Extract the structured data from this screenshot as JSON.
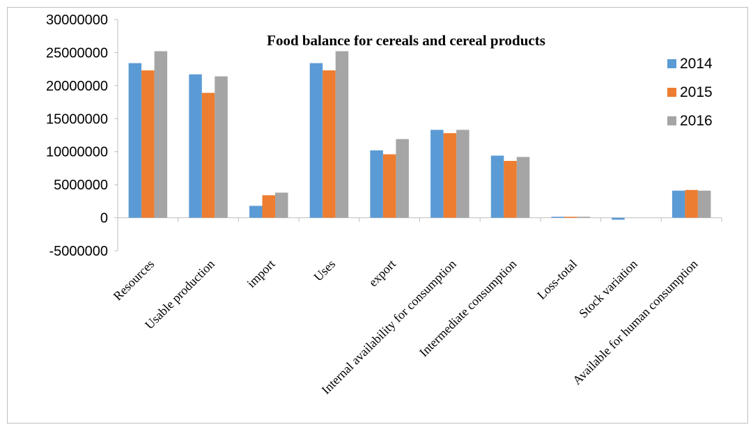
{
  "chart_data": {
    "type": "bar",
    "title": "Food balance for cereals and cereal products",
    "xlabel": "",
    "ylabel": "",
    "ylim": [
      -5000000,
      30000000
    ],
    "yticks": [
      "30000000",
      "25000000",
      "20000000",
      "15000000",
      "10000000",
      "5000000",
      "0",
      "-5000000"
    ],
    "categories": [
      "Resources",
      "Usable production",
      "import",
      "Uses",
      "export",
      "Internal availability for consumption",
      "Intermediate consumption",
      "Loss-total",
      "Stock variation",
      "Available for human consumption"
    ],
    "series": [
      {
        "name": "2014",
        "color": "#5b9bd5",
        "values": [
          23400000,
          21700000,
          1800000,
          23400000,
          10200000,
          13300000,
          9400000,
          150000,
          -300000,
          4100000
        ]
      },
      {
        "name": "2015",
        "color": "#ed7d31",
        "values": [
          22300000,
          18900000,
          3400000,
          22300000,
          9600000,
          12800000,
          8600000,
          150000,
          0,
          4200000
        ]
      },
      {
        "name": "2016",
        "color": "#a5a5a5",
        "values": [
          25200000,
          21400000,
          3800000,
          25200000,
          11900000,
          13300000,
          9200000,
          150000,
          0,
          4100000
        ]
      }
    ],
    "grid": false,
    "legend_position": "top-right"
  }
}
